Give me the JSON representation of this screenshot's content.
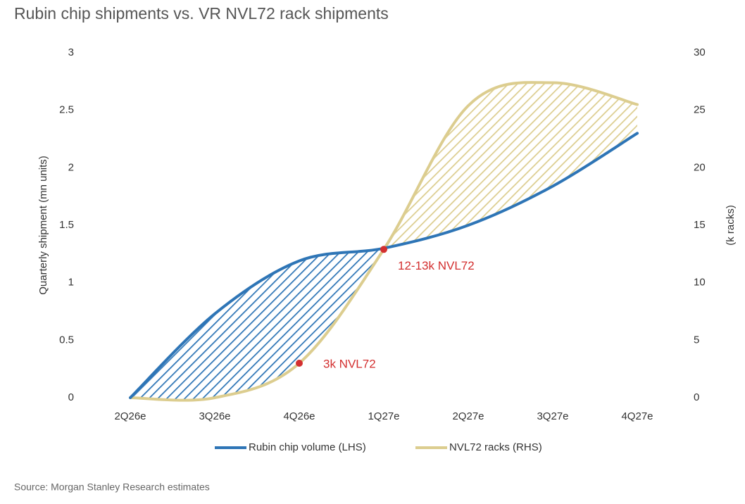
{
  "chart_data": {
    "type": "line",
    "title": "Rubin chip shipments vs. VR NVL72 rack shipments",
    "y_label": "Quarterly shipment (mn units)",
    "y2_label": "(k racks)",
    "source": "Source: Morgan Stanley Research estimates",
    "categories": [
      "2Q26e",
      "3Q26e",
      "4Q26e",
      "1Q27e",
      "2Q27e",
      "3Q27e",
      "4Q27e"
    ],
    "series": [
      {
        "name": "Rubin chip volume (LHS)",
        "color": "#2e75b6",
        "values": [
          0,
          0.73,
          1.19,
          1.3,
          1.5,
          1.84,
          2.3
        ]
      },
      {
        "name": "NVL72 racks (RHS)",
        "color": "#dccd8f",
        "axis": "y2",
        "values": [
          0,
          0,
          3,
          12.9,
          25.4,
          27.4,
          25.5
        ]
      }
    ],
    "annotations": [
      "12-13k NVL72",
      "3k NVL72"
    ],
    "annotation_color": "#d32f2f",
    "ylim": [
      0,
      3
    ],
    "yticks": [
      0,
      0.5,
      1,
      1.5,
      2,
      2.5,
      3
    ],
    "y2lim": [
      0,
      30
    ],
    "y2ticks": [
      0,
      5,
      10,
      15,
      20,
      25,
      30
    ],
    "grid": false,
    "legend": "bottom"
  }
}
